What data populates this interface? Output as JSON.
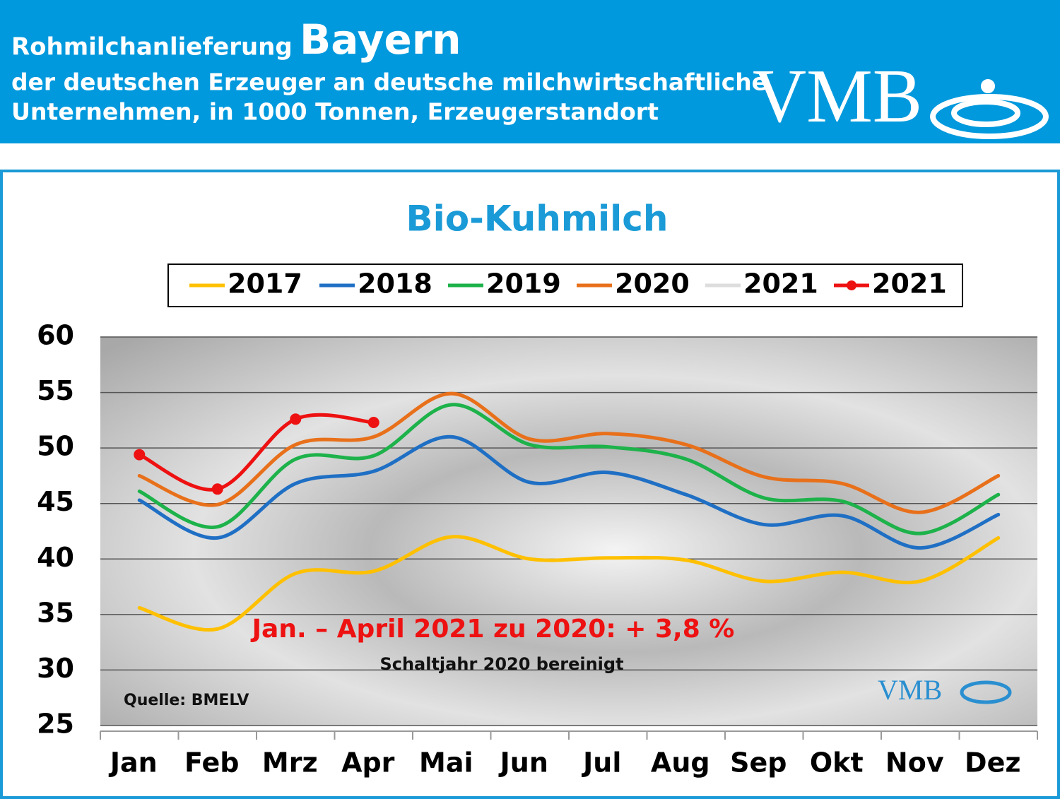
{
  "header": {
    "line1": "Rohmilchanlieferung",
    "region": "Bayern",
    "line2": "der deutschen Erzeuger an deutsche milchwirtschaftliche",
    "line3": "Unternehmen, in 1000 Tonnen, Erzeugerstandort",
    "logo": "VMB"
  },
  "chart_data": {
    "type": "line",
    "title": "Bio-Kuhmilch",
    "categories": [
      "Jan",
      "Feb",
      "Mrz",
      "Apr",
      "Mai",
      "Jun",
      "Jul",
      "Aug",
      "Sep",
      "Okt",
      "Nov",
      "Dez"
    ],
    "series": [
      {
        "name": "2017",
        "color": "#ffc000",
        "values": [
          35.6,
          33.7,
          38.7,
          38.9,
          42.0,
          40.0,
          40.1,
          39.9,
          38.0,
          38.8,
          38.0,
          41.9
        ]
      },
      {
        "name": "2018",
        "color": "#1f6fc4",
        "values": [
          45.3,
          41.9,
          46.8,
          47.9,
          51.0,
          46.9,
          47.8,
          45.8,
          43.1,
          43.9,
          41.0,
          44.0
        ]
      },
      {
        "name": "2019",
        "color": "#1db24a",
        "values": [
          46.1,
          42.9,
          49.0,
          49.3,
          53.9,
          50.3,
          50.1,
          49.0,
          45.5,
          45.2,
          42.3,
          45.8
        ]
      },
      {
        "name": "2020",
        "color": "#e8701a",
        "values": [
          47.5,
          44.9,
          50.3,
          51.0,
          54.9,
          50.8,
          51.3,
          50.3,
          47.4,
          46.8,
          44.2,
          47.5
        ]
      },
      {
        "name": "2021",
        "color": "#dddddd",
        "values": [
          null,
          null,
          null,
          null,
          null,
          null,
          null,
          null,
          null,
          null,
          null,
          null
        ]
      },
      {
        "name": "2021",
        "color": "#ee1111",
        "markers": true,
        "values": [
          49.4,
          46.3,
          52.6,
          52.3,
          null,
          null,
          null,
          null,
          null,
          null,
          null,
          null
        ]
      }
    ],
    "ylim": [
      25,
      60
    ],
    "yticks": [
      25,
      30,
      35,
      40,
      45,
      50,
      55,
      60
    ],
    "grid": true,
    "annotations": [
      "Jan. – April 2021 zu 2020: + 3,8 %",
      "Schaltjahr 2020 bereinigt",
      "Quelle: BMELV"
    ],
    "watermark": "VMB"
  }
}
